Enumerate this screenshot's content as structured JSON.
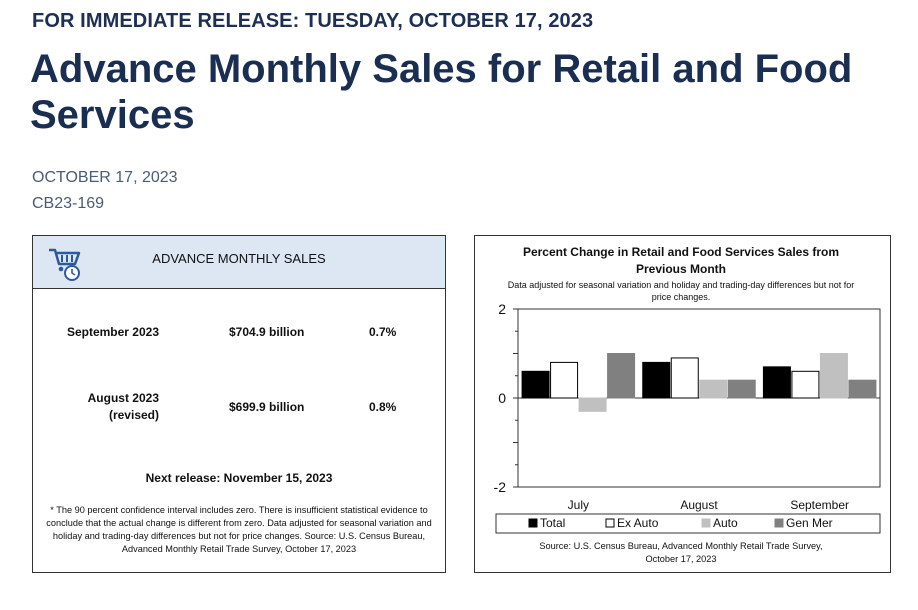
{
  "header": {
    "release_line": "FOR IMMEDIATE RELEASE: TUESDAY, OCTOBER 17, 2023",
    "title": "Advance Monthly Sales for Retail and Food Services",
    "date": "OCTOBER 17, 2023",
    "release_number": "CB23-169"
  },
  "summary_card": {
    "heading": "ADVANCE MONTHLY SALES",
    "rows": [
      {
        "label": "September 2023",
        "label_line2": "",
        "amount": "$704.9 billion",
        "change": "0.7%"
      },
      {
        "label": "August 2023",
        "label_line2": "(revised)",
        "amount": "$699.9 billion",
        "change": "0.8%"
      }
    ],
    "next_release": "Next release: November 15, 2023",
    "footnote": "* The 90 percent confidence interval includes zero. There is insufficient statistical evidence to conclude that the actual change is different from zero. Data adjusted for seasonal variation and holiday and trading-day differences but not for price changes. Source: U.S. Census Bureau, Advanced Monthly Retail Trade Survey, October 17, 2023"
  },
  "chart_data": {
    "type": "bar",
    "title_line1": "Percent Change in Retail and Food Services Sales from",
    "title_line2": "Previous Month",
    "subtitle_line1": "Data adjusted for seasonal variation and holiday and trading-day differences but not for",
    "subtitle_line2": "price changes.",
    "categories": [
      "July",
      "August",
      "September"
    ],
    "ylim": [
      -2,
      2
    ],
    "yticks": [
      "2",
      "0",
      "-2"
    ],
    "series": [
      {
        "name": "Total",
        "color": "#000000",
        "values": [
          0.6,
          0.8,
          0.7
        ]
      },
      {
        "name": "Ex Auto",
        "color": "#ffffff",
        "values": [
          0.8,
          0.9,
          0.6
        ]
      },
      {
        "name": "Auto",
        "color": "#c0c0c0",
        "values": [
          -0.3,
          0.4,
          1.0
        ]
      },
      {
        "name": "Gen Mer",
        "color": "#808080",
        "values": [
          1.0,
          0.4,
          0.4
        ]
      }
    ],
    "legend": {
      "Total": "Total",
      "Ex Auto": "Ex Auto",
      "Auto": "Auto",
      "Gen Mer": "Gen Mer"
    },
    "source_line1": "Source: U.S. Census Bureau, Advanced Monthly Retail Trade Survey,",
    "source_line2": "October 17, 2023"
  }
}
